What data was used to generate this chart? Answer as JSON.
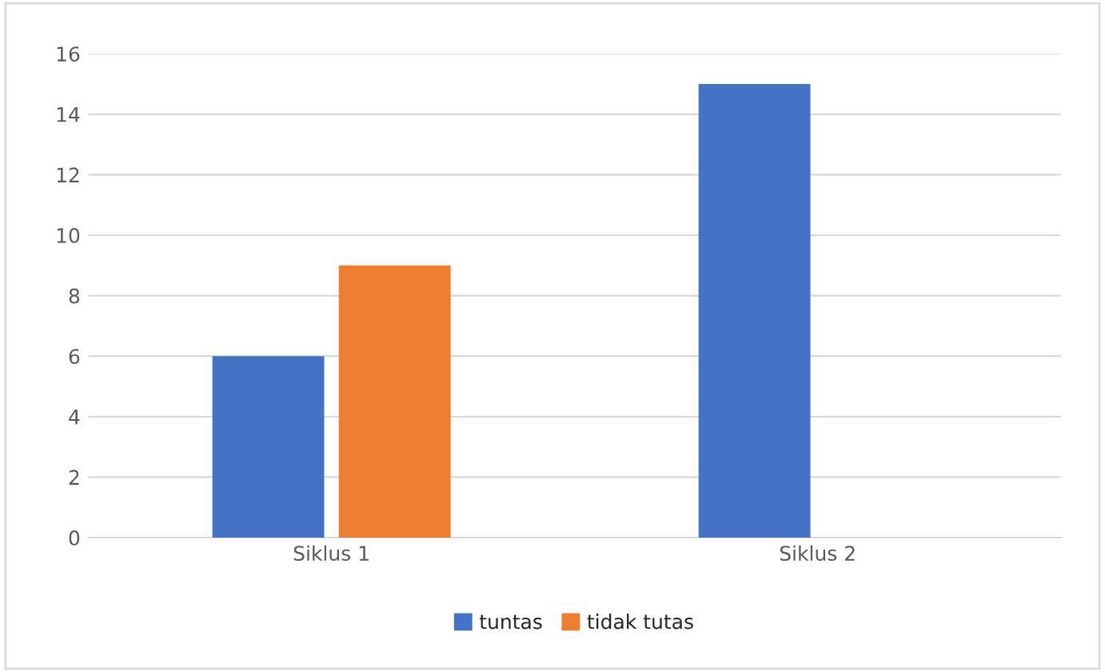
{
  "chart_data": {
    "type": "bar",
    "categories": [
      "Siklus 1",
      "Siklus 2"
    ],
    "series": [
      {
        "name": "tuntas",
        "color": "#4472c4",
        "values": [
          6,
          15
        ]
      },
      {
        "name": "tidak tutas",
        "color": "#ed7d31",
        "values": [
          9,
          null
        ]
      }
    ],
    "ylim": [
      0,
      16
    ],
    "yticks": [
      0,
      2,
      4,
      6,
      8,
      10,
      12,
      14,
      16
    ],
    "grid": "y",
    "legend": "bottom"
  }
}
